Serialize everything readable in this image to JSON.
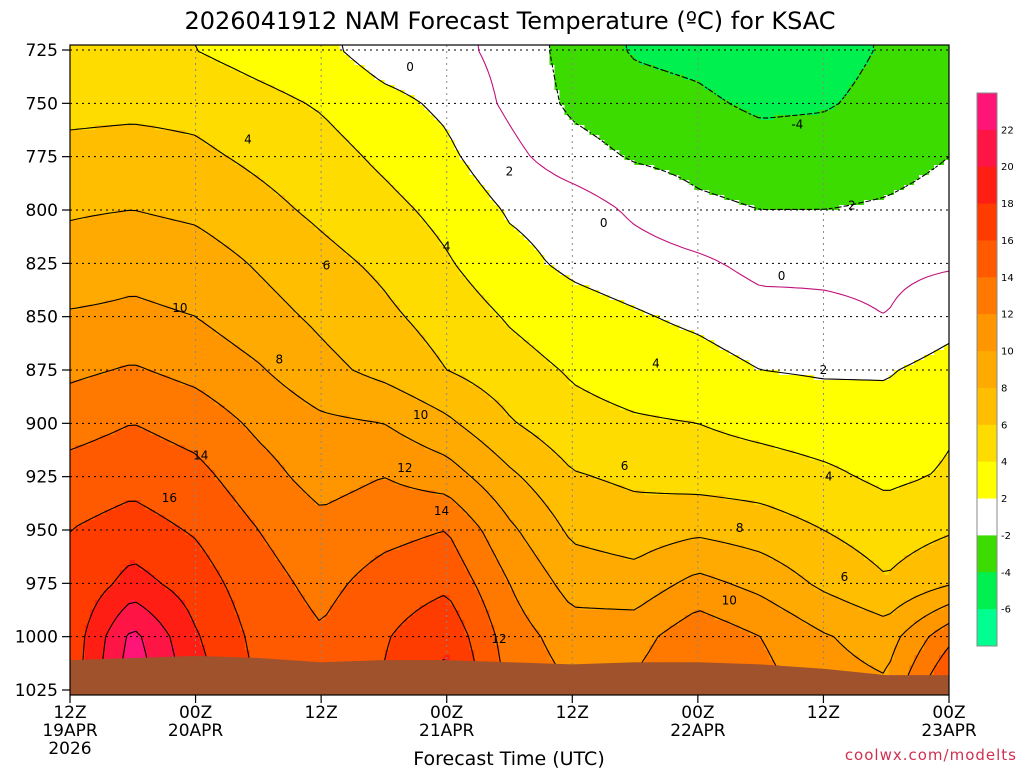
{
  "chart_data": {
    "type": "heatmap",
    "title": "2026041912 NAM Forecast Temperature (ºC) for KSAC",
    "xlabel": "Forecast Time (UTC)",
    "ylabel": "",
    "y_axis": {
      "ticks": [
        "725",
        "750",
        "775",
        "800",
        "825",
        "850",
        "875",
        "900",
        "925",
        "950",
        "975",
        "1000",
        "1025"
      ],
      "values": [
        725,
        750,
        775,
        800,
        825,
        850,
        875,
        900,
        925,
        950,
        975,
        1000,
        1025
      ],
      "range": [
        725,
        1025
      ],
      "inverted": true
    },
    "x_axis": {
      "ticks": [
        {
          "hour": 0,
          "lines": [
            "12Z",
            "19APR",
            "2026"
          ]
        },
        {
          "hour": 12,
          "lines": [
            "00Z",
            "20APR"
          ]
        },
        {
          "hour": 24,
          "lines": [
            "12Z"
          ]
        },
        {
          "hour": 36,
          "lines": [
            "00Z",
            "21APR"
          ]
        },
        {
          "hour": 48,
          "lines": [
            "12Z"
          ]
        },
        {
          "hour": 60,
          "lines": [
            "00Z",
            "22APR"
          ]
        },
        {
          "hour": 72,
          "lines": [
            "12Z"
          ]
        },
        {
          "hour": 84,
          "lines": [
            "00Z",
            "23APR"
          ]
        }
      ],
      "range_hours": [
        0,
        84
      ]
    },
    "grid": true,
    "colorbar": {
      "labels": [
        "22",
        "20",
        "18",
        "16",
        "14",
        "12",
        "10",
        "8",
        "6",
        "4",
        "2",
        "-2",
        "-4",
        "-6"
      ],
      "bins": [
        {
          "lo": 22,
          "hi": 24,
          "color": "#ff1478"
        },
        {
          "lo": 20,
          "hi": 22,
          "color": "#ff1446"
        },
        {
          "lo": 18,
          "hi": 20,
          "color": "#ff1e14"
        },
        {
          "lo": 16,
          "hi": 18,
          "color": "#ff3c00"
        },
        {
          "lo": 14,
          "hi": 16,
          "color": "#ff5a00"
        },
        {
          "lo": 12,
          "hi": 14,
          "color": "#ff7800"
        },
        {
          "lo": 10,
          "hi": 12,
          "color": "#ff9600"
        },
        {
          "lo": 8,
          "hi": 10,
          "color": "#ffaa00"
        },
        {
          "lo": 6,
          "hi": 8,
          "color": "#ffbe00"
        },
        {
          "lo": 4,
          "hi": 6,
          "color": "#ffdc00"
        },
        {
          "lo": 2,
          "hi": 4,
          "color": "#ffff00"
        },
        {
          "lo": -2,
          "hi": 2,
          "color": "#ffffff"
        },
        {
          "lo": -4,
          "hi": -2,
          "color": "#3cdc00"
        },
        {
          "lo": -6,
          "hi": -4,
          "color": "#00f050"
        },
        {
          "lo": -8,
          "hi": -6,
          "color": "#00ff90"
        }
      ]
    },
    "contour_labels": [
      {
        "text": "0",
        "hour": 32.5,
        "p": 733
      },
      {
        "text": "4",
        "hour": 17.0,
        "p": 767
      },
      {
        "text": "-4",
        "hour": 69.5,
        "p": 760
      },
      {
        "text": "2",
        "hour": 42.0,
        "p": 782
      },
      {
        "text": "0",
        "hour": 51.0,
        "p": 806
      },
      {
        "text": "-2",
        "hour": 74.5,
        "p": 798
      },
      {
        "text": "4",
        "hour": 36.0,
        "p": 817
      },
      {
        "text": "6",
        "hour": 24.5,
        "p": 826
      },
      {
        "text": "0",
        "hour": 68.0,
        "p": 831
      },
      {
        "text": "10",
        "hour": 10.5,
        "p": 846
      },
      {
        "text": "8",
        "hour": 20.0,
        "p": 870
      },
      {
        "text": "4",
        "hour": 56.0,
        "p": 872
      },
      {
        "text": "2",
        "hour": 72.0,
        "p": 875
      },
      {
        "text": "10",
        "hour": 33.5,
        "p": 896
      },
      {
        "text": "14",
        "hour": 12.5,
        "p": 915
      },
      {
        "text": "6",
        "hour": 53.0,
        "p": 920
      },
      {
        "text": "12",
        "hour": 32.0,
        "p": 921
      },
      {
        "text": "4",
        "hour": 72.5,
        "p": 925
      },
      {
        "text": "16",
        "hour": 9.5,
        "p": 935
      },
      {
        "text": "14",
        "hour": 35.5,
        "p": 941
      },
      {
        "text": "8",
        "hour": 64.0,
        "p": 949
      },
      {
        "text": "6",
        "hour": 74.0,
        "p": 972
      },
      {
        "text": "10",
        "hour": 63.0,
        "p": 983
      },
      {
        "text": "12",
        "hour": 41.0,
        "p": 1001
      }
    ],
    "temperature_grid": {
      "hours": [
        0,
        6,
        12,
        18,
        24,
        30,
        36,
        42,
        48,
        54,
        60,
        66,
        72,
        78,
        84
      ],
      "levels": [
        725,
        750,
        775,
        800,
        825,
        850,
        875,
        900,
        925,
        950,
        975,
        1000,
        1025
      ],
      "values": [
        [
          4.5,
          4.6,
          4.0,
          3.2,
          2.5,
          1.0,
          0.6,
          -0.6,
          -2.8,
          -4.2,
          -4.6,
          -5.4,
          -4.8,
          -3.8,
          -2.6
        ],
        [
          5.4,
          5.5,
          5.4,
          4.6,
          3.8,
          2.6,
          1.6,
          -0.4,
          -2.4,
          -3.2,
          -3.6,
          -4.4,
          -4.2,
          -3.4,
          -2.6
        ],
        [
          6.6,
          6.8,
          6.4,
          5.6,
          4.8,
          3.6,
          2.4,
          0.6,
          -1.2,
          -2.2,
          -2.6,
          -3.0,
          -3.0,
          -2.6,
          -2.0
        ],
        [
          7.8,
          8.0,
          7.6,
          6.6,
          5.6,
          4.6,
          3.4,
          1.8,
          1.2,
          -0.4,
          -1.6,
          -2.0,
          -2.0,
          -1.8,
          -1.4
        ],
        [
          8.8,
          9.4,
          9.0,
          7.8,
          6.6,
          5.6,
          4.2,
          2.6,
          1.6,
          1.0,
          0.4,
          -0.6,
          -0.4,
          -0.4,
          -0.2
        ],
        [
          10.2,
          10.4,
          10.0,
          8.8,
          7.6,
          6.4,
          5.2,
          3.8,
          2.8,
          2.2,
          1.6,
          0.8,
          0.4,
          0.0,
          1.2
        ],
        [
          11.6,
          12.2,
          11.4,
          10.2,
          8.6,
          7.4,
          6.0,
          4.8,
          3.8,
          3.2,
          2.8,
          2.0,
          1.8,
          1.8,
          2.8
        ],
        [
          13.2,
          14.0,
          13.2,
          11.6,
          10.4,
          10.0,
          8.4,
          6.2,
          4.6,
          4.2,
          4.0,
          3.4,
          3.0,
          2.8,
          3.8
        ],
        [
          14.8,
          15.4,
          14.6,
          12.8,
          11.2,
          12.0,
          11.0,
          8.4,
          6.2,
          5.6,
          5.2,
          5.0,
          4.4,
          3.6,
          4.2
        ],
        [
          16.0,
          16.8,
          15.8,
          14.0,
          12.6,
          13.4,
          14.0,
          10.4,
          7.6,
          7.0,
          7.6,
          7.0,
          6.0,
          5.0,
          5.8
        ],
        [
          16.2,
          18.8,
          17.0,
          14.8,
          13.4,
          14.8,
          15.6,
          12.0,
          9.2,
          8.8,
          10.6,
          9.4,
          7.6,
          6.2,
          7.8
        ],
        [
          16.6,
          22.6,
          18.2,
          15.4,
          14.2,
          15.8,
          17.6,
          13.0,
          11.0,
          11.2,
          13.4,
          12.0,
          10.2,
          9.0,
          13.4
        ],
        [
          16.8,
          23.6,
          19.0,
          15.8,
          14.6,
          16.2,
          18.8,
          13.6,
          12.0,
          12.4,
          14.2,
          12.8,
          11.0,
          10.4,
          16.6
        ]
      ]
    },
    "surface_pressure": [
      1011,
      1010,
      1009,
      1010,
      1012,
      1011,
      1011,
      1012,
      1013,
      1012,
      1012,
      1013,
      1015,
      1018,
      1018
    ],
    "credit": "coolwx.com/modelts"
  }
}
